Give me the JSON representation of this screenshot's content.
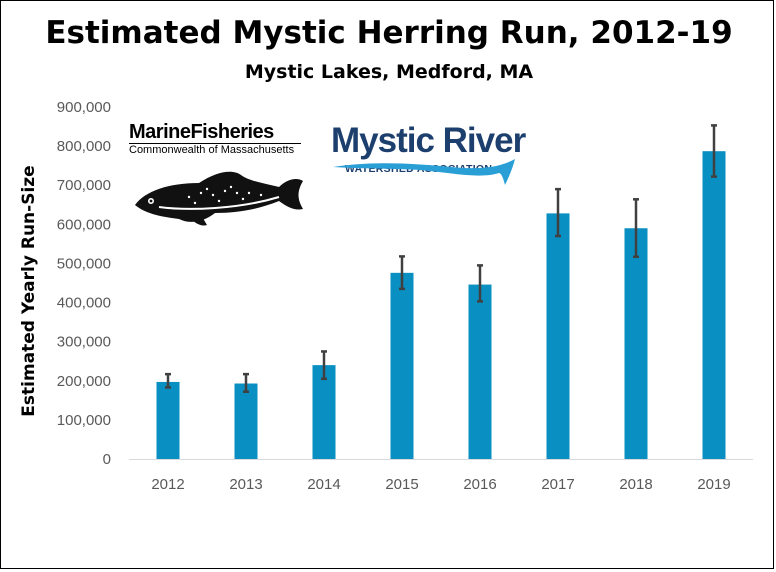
{
  "chart_data": {
    "type": "bar",
    "title": "Estimated Mystic Herring Run, 2012-19",
    "subtitle": "Mystic Lakes, Medford, MA",
    "xlabel": "",
    "ylabel": "Estimated Yearly Run-Size",
    "categories": [
      "2012",
      "2013",
      "2014",
      "2015",
      "2016",
      "2017",
      "2018",
      "2019"
    ],
    "values": [
      197000,
      193000,
      240000,
      476000,
      446000,
      628000,
      590000,
      787000
    ],
    "error_low": [
      183000,
      172000,
      205000,
      435000,
      403000,
      570000,
      517000,
      722000
    ],
    "error_high": [
      217000,
      217000,
      275000,
      518000,
      495000,
      690000,
      664000,
      853000
    ],
    "ylim": [
      0,
      900000
    ],
    "yticks": [
      0,
      100000,
      200000,
      300000,
      400000,
      500000,
      600000,
      700000,
      800000,
      900000
    ],
    "ytick_labels": [
      "0",
      "100,000",
      "200,000",
      "300,000",
      "400,000",
      "500,000",
      "600,000",
      "700,000",
      "800,000",
      "900,000"
    ],
    "grid": false,
    "legend": "none",
    "bar_color": "#0a8fc2",
    "error_bar_color": "#404040"
  },
  "logos": {
    "marine_fisheries": {
      "name": "MarineFisheries",
      "subtitle": "Commonwealth of Massachusetts",
      "icon": "fish-icon"
    },
    "mystic_river": {
      "name": "Mystic River",
      "subtitle": "WATERSHED ASSOCIATION",
      "color": "#1c3f6e",
      "wave_color": "#2a9fd6"
    }
  }
}
